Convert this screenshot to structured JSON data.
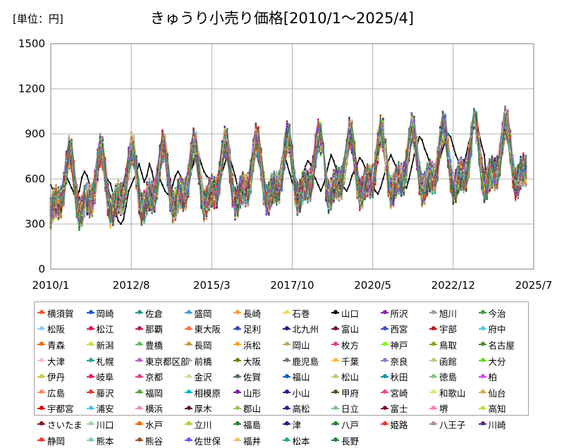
{
  "chart_data": {
    "type": "line",
    "title": "きゅうり小売り価格[2010/1～2025/4]",
    "unit_label": "[単位：円]",
    "ylim": [
      0,
      1500
    ],
    "y_ticks": [
      "0",
      "300",
      "600",
      "900",
      "1200",
      "1500"
    ],
    "x_ticks": [
      "2010/1",
      "2012/8",
      "2015/3",
      "2017/10",
      "2020/5",
      "2022/12",
      "2025/7"
    ],
    "grid": true,
    "legend_position": "bottom",
    "series_names": [
      "横須賀",
      "岡崎",
      "佐倉",
      "盛岡",
      "長崎",
      "石巻",
      "山口",
      "所沢",
      "旭川",
      "今治",
      "松阪",
      "松江",
      "那覇",
      "東大阪",
      "足利",
      "北九州",
      "富山",
      "西宮",
      "宇部",
      "府中",
      "青森",
      "新潟",
      "豊橋",
      "長岡",
      "浜松",
      "岡山",
      "枚方",
      "神戸",
      "鳥取",
      "名古屋",
      "大津",
      "札幌",
      "東京都区部",
      "前橋",
      "大阪",
      "鹿児島",
      "千葉",
      "奈良",
      "函館",
      "大分",
      "伊丹",
      "岐阜",
      "京都",
      "金沢",
      "佐賀",
      "福山",
      "松山",
      "秋田",
      "徳島",
      "柏",
      "広島",
      "藤沢",
      "福岡",
      "相模原",
      "山形",
      "小山",
      "甲府",
      "宮崎",
      "和歌山",
      "仙台",
      "宇都宮",
      "浦安",
      "横浜",
      "厚木",
      "郡山",
      "高松",
      "日立",
      "富士",
      "堺",
      "高知",
      "さいたま",
      "川口",
      "水戸",
      "立川",
      "福島",
      "津",
      "八戸",
      "姫路",
      "八王子",
      "川崎",
      "静岡",
      "熊本",
      "熊谷",
      "佐世保",
      "福井",
      "松本",
      "長野"
    ],
    "series_colors": [
      "#e8602c",
      "#1e5bd8",
      "#2a9d8f",
      "#3fa7d6",
      "#f2a640",
      "#f4e04d",
      "#000000",
      "#8e24aa",
      "#9e9e9e",
      "#43a047",
      "#90caf9",
      "#d81b60",
      "#c2185b",
      "#ff7043",
      "#3949ab",
      "#1a237e",
      "#6d1b3b",
      "#3f51b5",
      "#b71c1c",
      "#4dd0e1",
      "#ef6c00",
      "#cddc39",
      "#66bb6a",
      "#bfa640",
      "#ffa726",
      "#c9a86a",
      "#ec407a",
      "#76ff03",
      "#9e9d24",
      "#558b2f",
      "#f8bbd0",
      "#26a69a",
      "#ba68c8",
      "#bcaaa4",
      "#827717",
      "#8d6e63",
      "#fbc02d",
      "#7986cb",
      "#aed581",
      "#64dd17",
      "#d4c64a",
      "#e91e63",
      "#ec407a",
      "#c5e1a5",
      "#546e7a",
      "#1565c0",
      "#aed581",
      "#0097a7",
      "#81c784",
      "#e040fb",
      "#ff8a65",
      "#e53935",
      "#689f38",
      "#00bcd4",
      "#7b1fa2",
      "#311b92",
      "#33691e",
      "#ff4081",
      "#dce775",
      "#cdb54a",
      "#d50000",
      "#4fc3f7",
      "#f48fb1",
      "#5d1a1a",
      "#9ccc65",
      "#4a148c",
      "#81c784",
      "#880e4f",
      "#ff80ab",
      "#cddc39",
      "#7b1b1b",
      "#a5d6a7",
      "#ef6c00",
      "#c0ca33",
      "#2e7d32",
      "#1a237e",
      "#2e7d32",
      "#e53935",
      "#b388a4",
      "#5c2c86",
      "#e53935",
      "#80cbc4",
      "#a0522d",
      "#7c4dff",
      "#e6c46a",
      "#26a69a",
      "#2e7d32"
    ],
    "x_start": "2010/1",
    "x_end": "2025/4",
    "representative_series": [
      {
        "name": "山口",
        "values": [
          560,
          520,
          490,
          470,
          450,
          560,
          620,
          580,
          540,
          500,
          470,
          520,
          610,
          650,
          620,
          560,
          530,
          580,
          700,
          760,
          700,
          640,
          590,
          570,
          500,
          380,
          320,
          300,
          330,
          420,
          520,
          560,
          600,
          640,
          700,
          640,
          580,
          620,
          700,
          650,
          560,
          520,
          600,
          560,
          520,
          500,
          480,
          560,
          620,
          650,
          620,
          580,
          540,
          600,
          650,
          700,
          780,
          760,
          700,
          650,
          620,
          600,
          560,
          520,
          480,
          560,
          640,
          700,
          760,
          740,
          680,
          620,
          540,
          480,
          440,
          500,
          600,
          660,
          720,
          780,
          720,
          640,
          580,
          520,
          460,
          420,
          480,
          560,
          620,
          700,
          760,
          700,
          640,
          580,
          540,
          520,
          580,
          620,
          680,
          720,
          700,
          640,
          600,
          560,
          520,
          560,
          620,
          700,
          760,
          720,
          660,
          600,
          560,
          540,
          520,
          560,
          620,
          660,
          700,
          740,
          720,
          680,
          640,
          600,
          560,
          520,
          500,
          540,
          600,
          660,
          720,
          760,
          720,
          680,
          620,
          580,
          560,
          540,
          600,
          680,
          760,
          820,
          880,
          860,
          800,
          760,
          700,
          660,
          640,
          680,
          740,
          800,
          860,
          900,
          880,
          820,
          760,
          720,
          700,
          680,
          760,
          840,
          900,
          940,
          960,
          900,
          820,
          760
        ]
      }
    ]
  }
}
